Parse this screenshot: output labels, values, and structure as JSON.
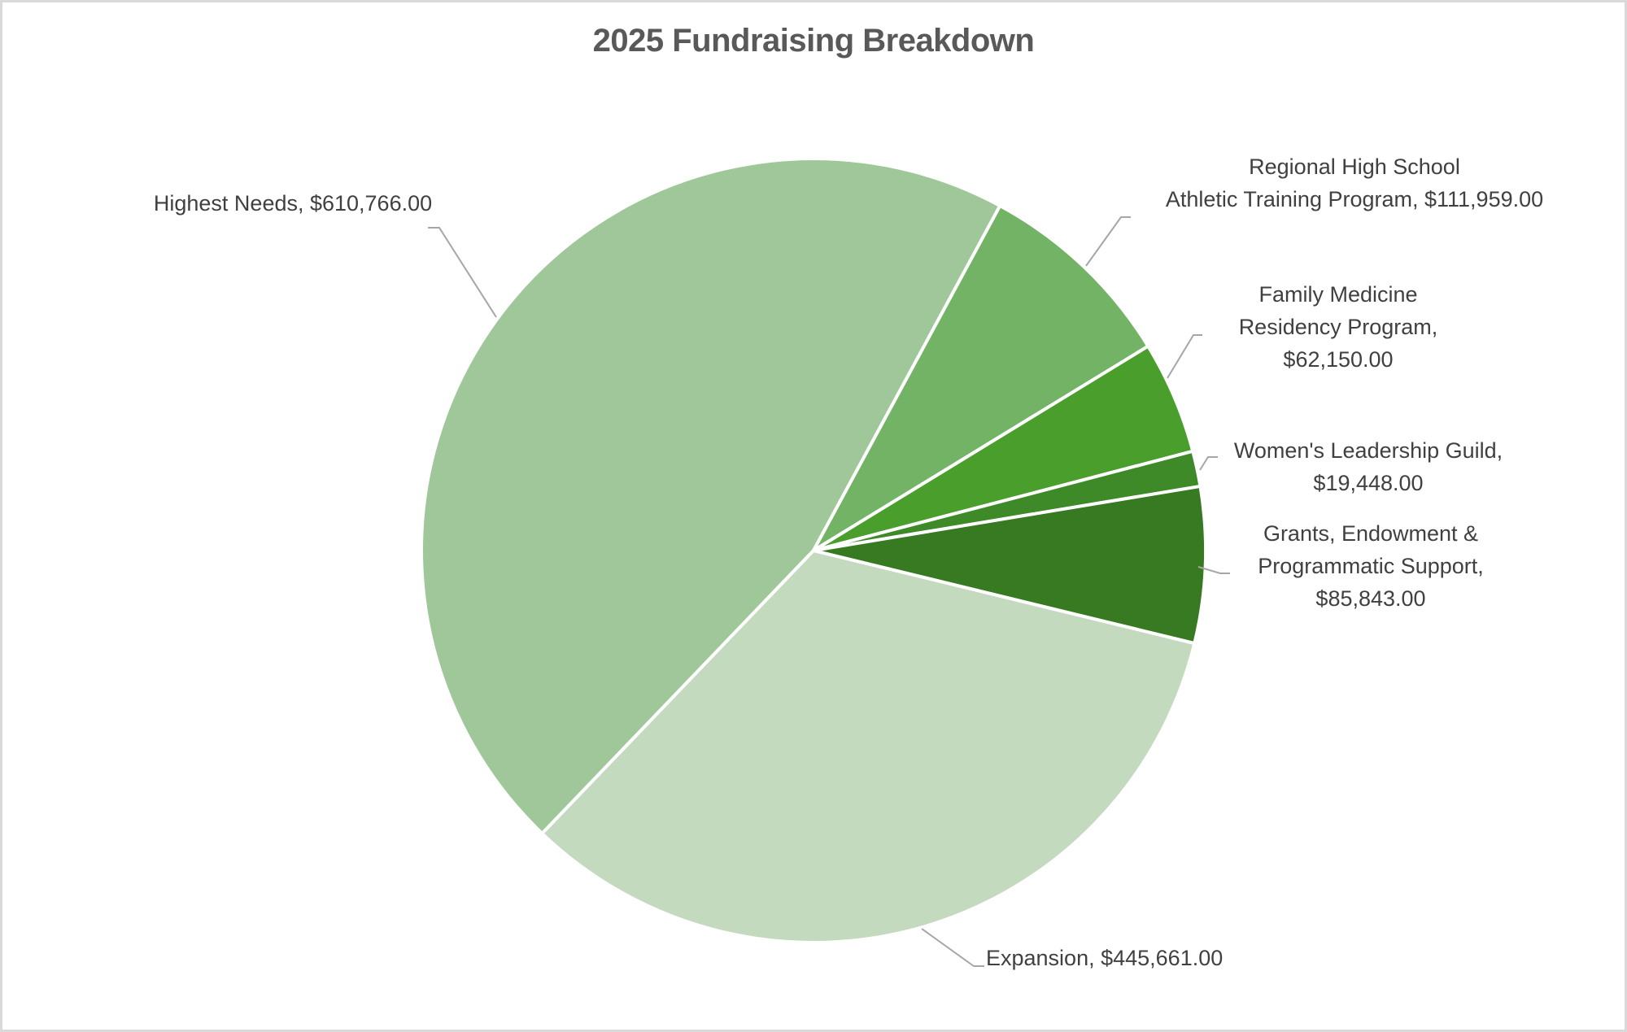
{
  "chart_data": {
    "type": "pie",
    "title": "2025 Fundraising Breakdown",
    "categories": [
      "Highest Needs",
      "Regional High School Athletic Training Program",
      "Family Medicine Residency Program",
      "Women's Leadership Guild",
      "Grants, Endowment & Programmatic Support",
      "Expansion"
    ],
    "values": [
      610766.0,
      111959.0,
      62150.0,
      19448.0,
      85843.0,
      445661.0
    ],
    "colors": [
      "#a0c79a",
      "#72b366",
      "#4a9e2b",
      "#3e8a28",
      "#377a22",
      "#c3dabf"
    ],
    "legend": "none",
    "data_labels": "category, value (leader lines)"
  },
  "labels": {
    "highest_needs": [
      "Highest Needs, $610,766.00"
    ],
    "regional": [
      "Regional High School",
      "Athletic Training Program, $111,959.00"
    ],
    "family": [
      "Family Medicine",
      "Residency Program,",
      "$62,150.00"
    ],
    "womens": [
      "Women's Leadership Guild,",
      "$19,448.00"
    ],
    "grants": [
      "Grants, Endowment &",
      "Programmatic Support,",
      "$85,843.00"
    ],
    "expansion": [
      "Expansion, $445,661.00"
    ]
  }
}
